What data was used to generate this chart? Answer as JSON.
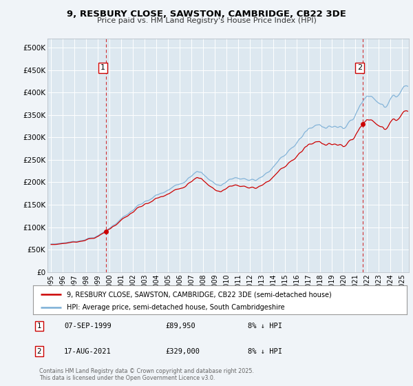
{
  "title": "9, RESBURY CLOSE, SAWSTON, CAMBRIDGE, CB22 3DE",
  "subtitle": "Price paid vs. HM Land Registry's House Price Index (HPI)",
  "property_label": "9, RESBURY CLOSE, SAWSTON, CAMBRIDGE, CB22 3DE (semi-detached house)",
  "hpi_label": "HPI: Average price, semi-detached house, South Cambridgeshire",
  "sale1_date": "07-SEP-1999",
  "sale1_price": "£89,950",
  "sale1_note": "8% ↓ HPI",
  "sale2_date": "17-AUG-2021",
  "sale2_price": "£329,000",
  "sale2_note": "8% ↓ HPI",
  "footer": "Contains HM Land Registry data © Crown copyright and database right 2025.\nThis data is licensed under the Open Government Licence v3.0.",
  "ylabel_ticks": [
    0,
    50000,
    100000,
    150000,
    200000,
    250000,
    300000,
    350000,
    400000,
    450000,
    500000
  ],
  "ylabel_labels": [
    "£0",
    "£50K",
    "£100K",
    "£150K",
    "£200K",
    "£250K",
    "£300K",
    "£350K",
    "£400K",
    "£450K",
    "£500K"
  ],
  "ylim": [
    0,
    520000
  ],
  "property_color": "#cc0000",
  "hpi_color": "#7aaed6",
  "marker_color": "#cc0000",
  "vline_color": "#cc0000",
  "bg_color": "#f0f4f8",
  "plot_bg": "#dde8f0",
  "grid_color": "#ffffff",
  "sale1_year": 1999.69,
  "sale1_value": 89950,
  "sale2_year": 2021.63,
  "sale2_value": 329000,
  "xmin": 1994.7,
  "xmax": 2025.6,
  "xtick_years": [
    1995,
    1996,
    1997,
    1998,
    1999,
    2000,
    2001,
    2002,
    2003,
    2004,
    2005,
    2006,
    2007,
    2008,
    2009,
    2010,
    2011,
    2012,
    2013,
    2014,
    2015,
    2016,
    2017,
    2018,
    2019,
    2020,
    2021,
    2022,
    2023,
    2024,
    2025
  ]
}
